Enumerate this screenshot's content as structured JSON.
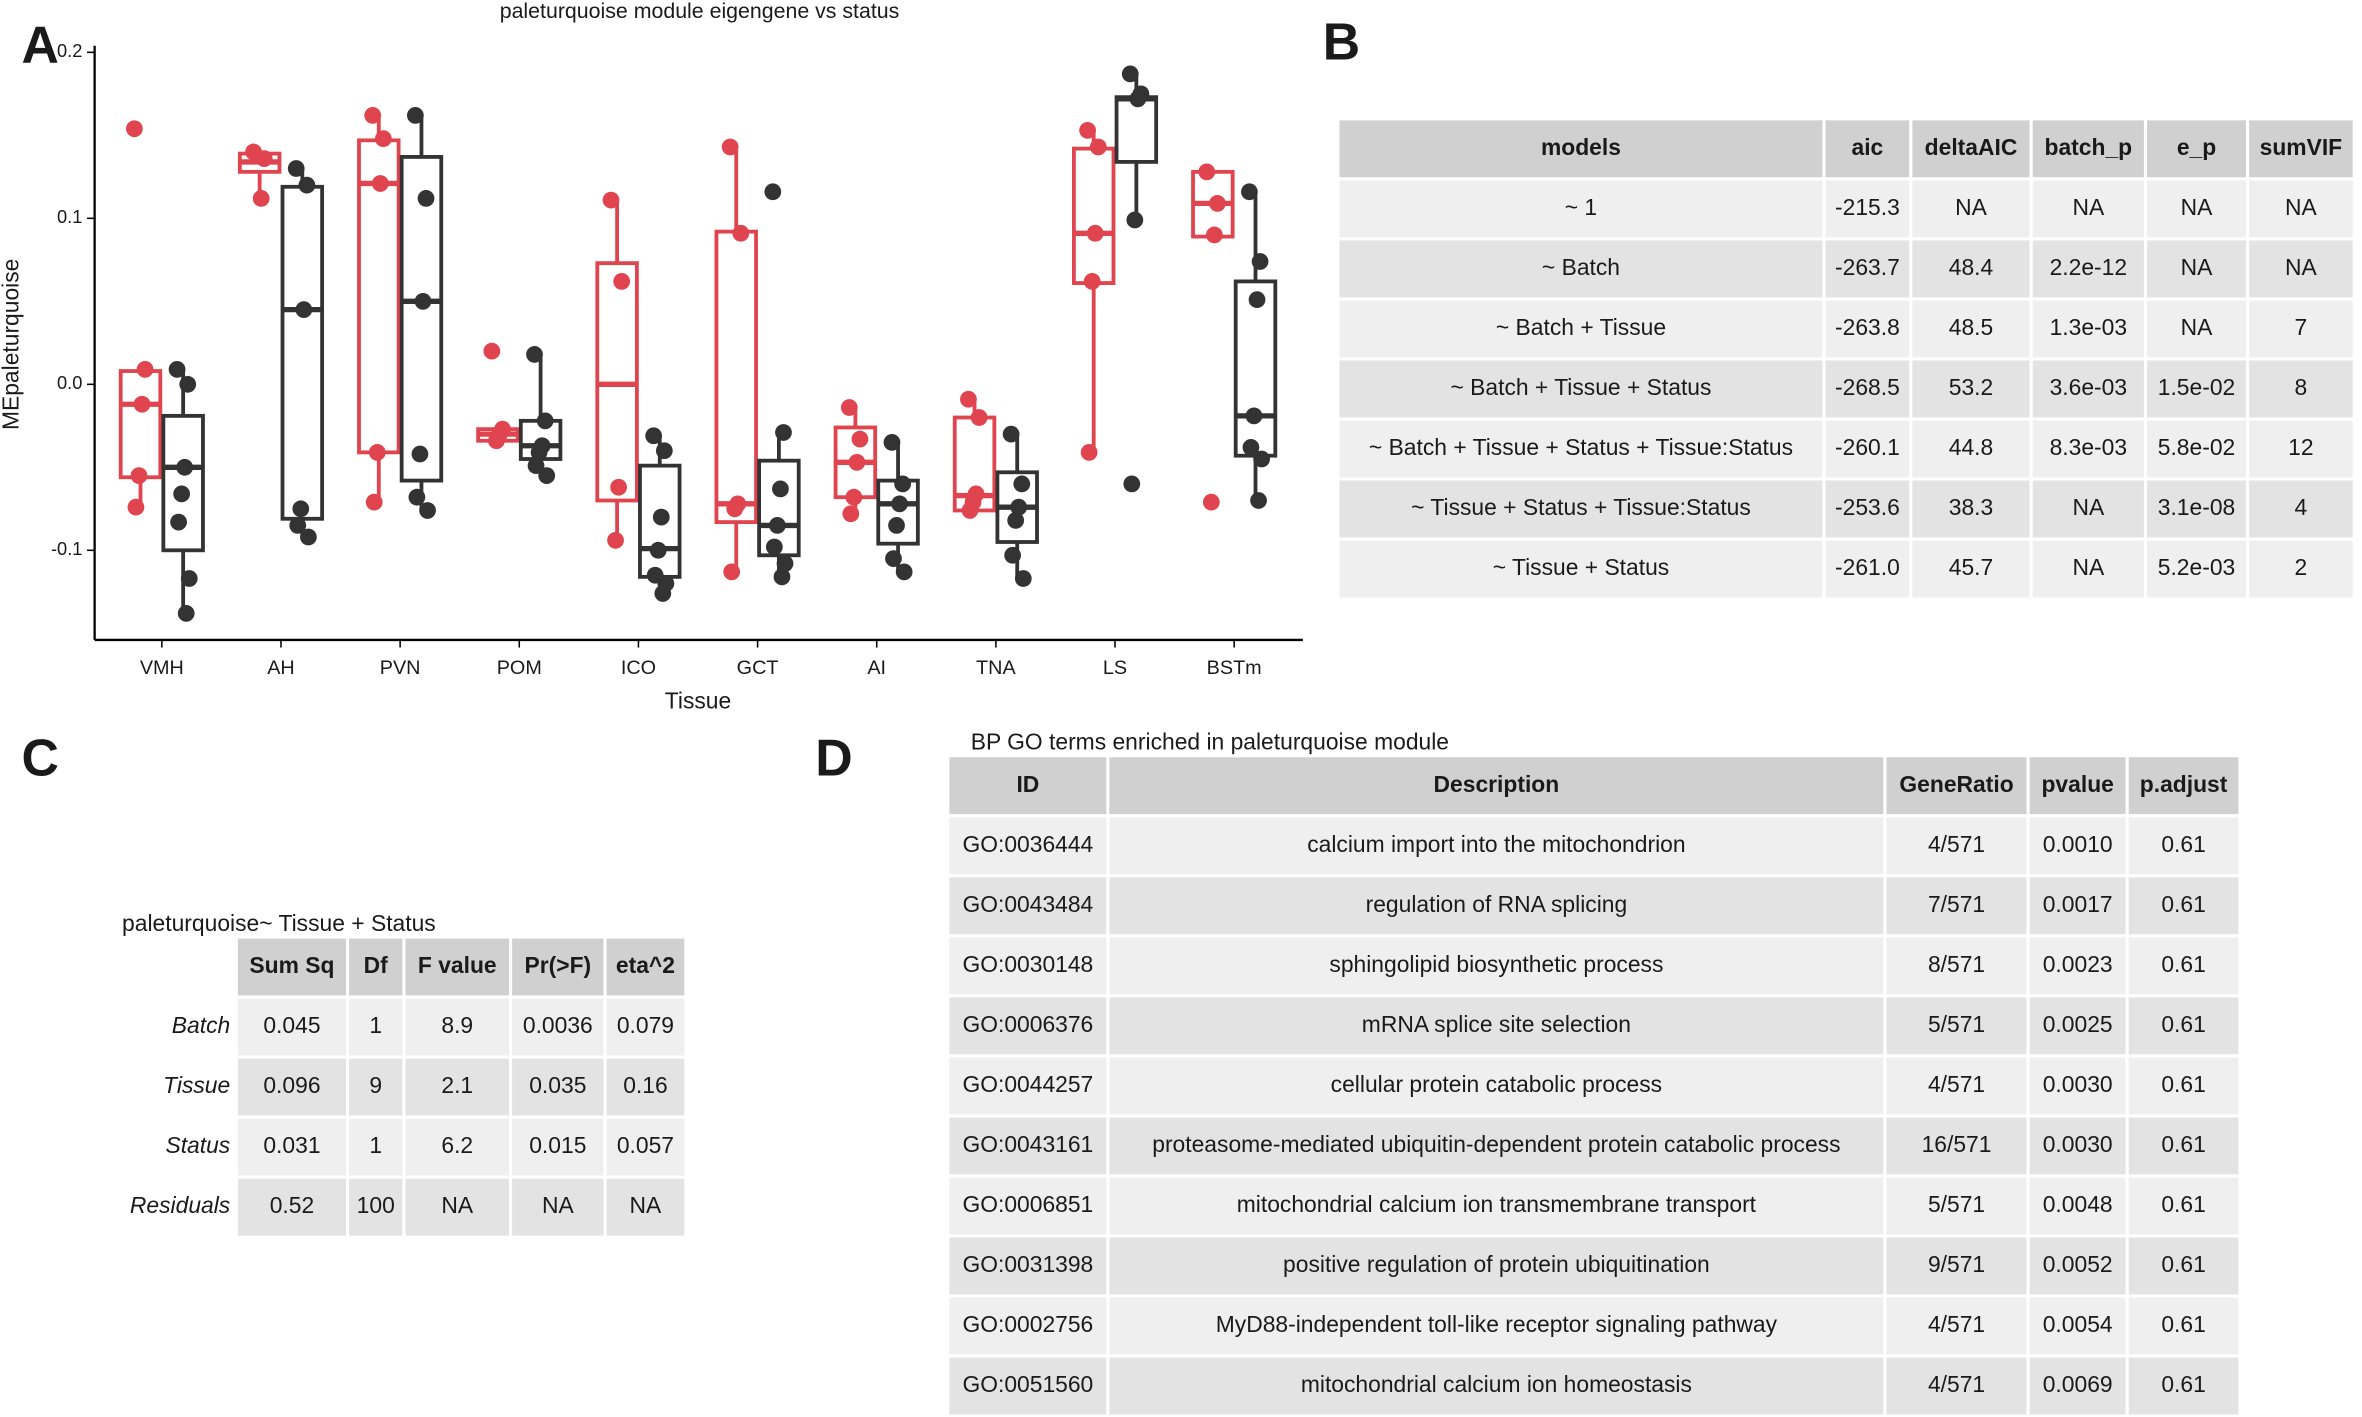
{
  "panel_labels": [
    "A",
    "B",
    "C",
    "D"
  ],
  "chart_data": {
    "type": "box",
    "title": "paleturquoise module eigengene vs status",
    "x_label": "Tissue",
    "y_label": "MEpaleturquoise",
    "categories": [
      "VMH",
      "AH",
      "PVN",
      "POM",
      "ICO",
      "GCT",
      "AI",
      "TNA",
      "LS",
      "BSTm"
    ],
    "ylim": [
      -0.154,
      0.204
    ],
    "yticks": [
      -0.1,
      {
        "value": 0,
        "label": "0.0"
      },
      0.1,
      0.2
    ],
    "series": [
      {
        "color": "#e0444e",
        "boxes": [
          {
            "min": -0.074,
            "q1": -0.056,
            "median": -0.012,
            "q3": 0.008,
            "max": 0.009
          },
          {
            "min": 0.112,
            "q1": 0.128,
            "median": 0.134,
            "q3": 0.139,
            "max": 0.14
          },
          {
            "min": -0.071,
            "q1": -0.041,
            "median": 0.121,
            "q3": 0.147,
            "max": 0.162
          },
          {
            "min": -0.035,
            "q1": -0.034,
            "median": -0.03,
            "q3": -0.027,
            "max": -0.027
          },
          {
            "min": -0.094,
            "q1": -0.07,
            "median": 0.0,
            "q3": 0.073,
            "max": 0.111
          },
          {
            "min": -0.113,
            "q1": -0.083,
            "median": -0.072,
            "q3": 0.092,
            "max": 0.143
          },
          {
            "min": -0.078,
            "q1": -0.068,
            "median": -0.047,
            "q3": -0.026,
            "max": -0.014
          },
          {
            "min": -0.076,
            "q1": -0.076,
            "median": -0.067,
            "q3": -0.02,
            "max": -0.009
          },
          {
            "min": -0.041,
            "q1": 0.061,
            "median": 0.091,
            "q3": 0.142,
            "max": 0.153
          },
          {
            "min": 0.089,
            "q1": 0.089,
            "median": 0.109,
            "q3": 0.128,
            "max": 0.128
          }
        ],
        "points": [
          [
            0.154,
            0.009,
            -0.012,
            -0.055,
            -0.074
          ],
          [
            0.14,
            0.136,
            0.112
          ],
          [
            0.162,
            0.148,
            0.121,
            -0.041,
            -0.071
          ],
          [
            0.02,
            -0.027,
            -0.03,
            -0.034
          ],
          [
            0.111,
            0.062,
            -0.062,
            -0.094
          ],
          [
            0.143,
            0.091,
            -0.072,
            -0.075,
            -0.113
          ],
          [
            -0.014,
            -0.033,
            -0.047,
            -0.068,
            -0.078
          ],
          [
            -0.009,
            -0.02,
            -0.066,
            -0.071,
            -0.076
          ],
          [
            0.153,
            0.143,
            0.091,
            0.062,
            -0.041
          ],
          [
            0.128,
            0.109,
            0.09,
            -0.071
          ]
        ]
      },
      {
        "color": "#333333",
        "boxes": [
          {
            "min": -0.138,
            "q1": -0.1,
            "median": -0.05,
            "q3": -0.019,
            "max": 0.009
          },
          {
            "min": -0.092,
            "q1": -0.081,
            "median": 0.045,
            "q3": 0.119,
            "max": 0.13
          },
          {
            "min": -0.076,
            "q1": -0.058,
            "median": 0.05,
            "q3": 0.137,
            "max": 0.162
          },
          {
            "min": -0.055,
            "q1": -0.045,
            "median": -0.037,
            "q3": -0.022,
            "max": 0.018
          },
          {
            "min": -0.126,
            "q1": -0.116,
            "median": -0.099,
            "q3": -0.049,
            "max": -0.031
          },
          {
            "min": -0.116,
            "q1": -0.103,
            "median": -0.085,
            "q3": -0.046,
            "max": -0.029
          },
          {
            "min": -0.113,
            "q1": -0.096,
            "median": -0.072,
            "q3": -0.058,
            "max": -0.035
          },
          {
            "min": -0.117,
            "q1": -0.095,
            "median": -0.074,
            "q3": -0.053,
            "max": -0.03
          },
          {
            "min": 0.099,
            "q1": 0.134,
            "median": 0.172,
            "q3": 0.173,
            "max": 0.187
          },
          {
            "min": -0.07,
            "q1": -0.043,
            "median": -0.019,
            "q3": 0.062,
            "max": 0.116
          }
        ],
        "points": [
          [
            0.009,
            0.0,
            -0.05,
            -0.066,
            -0.083,
            -0.117,
            -0.138
          ],
          [
            0.13,
            0.12,
            0.045,
            -0.075,
            -0.085,
            -0.092
          ],
          [
            0.162,
            0.112,
            0.05,
            -0.042,
            -0.068,
            -0.076
          ],
          [
            0.018,
            -0.022,
            -0.037,
            -0.041,
            -0.049,
            -0.055
          ],
          [
            -0.031,
            -0.04,
            -0.08,
            -0.1,
            -0.115,
            -0.12,
            -0.126
          ],
          [
            0.116,
            -0.029,
            -0.063,
            -0.085,
            -0.098,
            -0.108,
            -0.116
          ],
          [
            -0.035,
            -0.06,
            -0.072,
            -0.085,
            -0.105,
            -0.113
          ],
          [
            -0.03,
            -0.06,
            -0.074,
            -0.082,
            -0.103,
            -0.117
          ],
          [
            0.187,
            0.175,
            0.172,
            0.099,
            -0.06
          ],
          [
            0.116,
            0.074,
            0.051,
            -0.019,
            -0.038,
            -0.045,
            -0.07
          ]
        ]
      }
    ]
  },
  "table_b": {
    "columns": [
      "models",
      "aic",
      "deltaAIC",
      "batch_p",
      "e_p",
      "sumVIF"
    ],
    "rows": [
      [
        "~ 1",
        "-215.3",
        "NA",
        "NA",
        "NA",
        "NA"
      ],
      [
        "~ Batch",
        "-263.7",
        "48.4",
        "2.2e-12",
        "NA",
        "NA"
      ],
      [
        "~ Batch + Tissue",
        "-263.8",
        "48.5",
        "1.3e-03",
        "NA",
        "7"
      ],
      [
        "~ Batch + Tissue + Status",
        "-268.5",
        "53.2",
        "3.6e-03",
        "1.5e-02",
        "8"
      ],
      [
        "~ Batch + Tissue + Status + Tissue:Status",
        "-260.1",
        "44.8",
        "8.3e-03",
        "5.8e-02",
        "12"
      ],
      [
        "~ Tissue + Status + Tissue:Status",
        "-253.6",
        "38.3",
        "NA",
        "3.1e-08",
        "4"
      ],
      [
        "~ Tissue + Status",
        "-261.0",
        "45.7",
        "NA",
        "5.2e-03",
        "2"
      ]
    ]
  },
  "table_c": {
    "title": "paleturquoise~ Tissue + Status",
    "columns": [
      "Sum Sq",
      "Df",
      "F value",
      "Pr(>F)",
      "eta^2"
    ],
    "row_names": [
      "Batch",
      "Tissue",
      "Status",
      "Residuals"
    ],
    "rows": [
      [
        "0.045",
        "1",
        "8.9",
        "0.0036",
        "0.079"
      ],
      [
        "0.096",
        "9",
        "2.1",
        "0.035",
        "0.16"
      ],
      [
        "0.031",
        "1",
        "6.2",
        "0.015",
        "0.057"
      ],
      [
        "0.52",
        "100",
        "NA",
        "NA",
        "NA"
      ]
    ]
  },
  "table_d": {
    "title": "BP GO terms enriched in paleturquoise module",
    "columns": [
      "ID",
      "Description",
      "GeneRatio",
      "pvalue",
      "p.adjust"
    ],
    "rows": [
      [
        "GO:0036444",
        "calcium import into the mitochondrion",
        "4/571",
        "0.0010",
        "0.61"
      ],
      [
        "GO:0043484",
        "regulation of RNA splicing",
        "7/571",
        "0.0017",
        "0.61"
      ],
      [
        "GO:0030148",
        "sphingolipid biosynthetic process",
        "8/571",
        "0.0023",
        "0.61"
      ],
      [
        "GO:0006376",
        "mRNA splice site selection",
        "5/571",
        "0.0025",
        "0.61"
      ],
      [
        "GO:0044257",
        "cellular protein catabolic process",
        "4/571",
        "0.0030",
        "0.61"
      ],
      [
        "GO:0043161",
        "proteasome-mediated ubiquitin-dependent protein catabolic process",
        "16/571",
        "0.0030",
        "0.61"
      ],
      [
        "GO:0006851",
        "mitochondrial calcium ion transmembrane transport",
        "5/571",
        "0.0048",
        "0.61"
      ],
      [
        "GO:0031398",
        "positive regulation of protein ubiquitination",
        "9/571",
        "0.0052",
        "0.61"
      ],
      [
        "GO:0002756",
        "MyD88-independent toll-like receptor signaling pathway",
        "4/571",
        "0.0054",
        "0.61"
      ],
      [
        "GO:0051560",
        "mitochondrial calcium ion homeostasis",
        "4/571",
        "0.0069",
        "0.61"
      ]
    ]
  }
}
